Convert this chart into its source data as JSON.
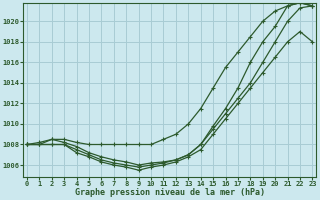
{
  "title": "Graphe pression niveau de la mer (hPa)",
  "bg_color": "#cce8ee",
  "grid_color": "#a8ccd4",
  "line_color": "#2d5a2d",
  "x_ticks": [
    0,
    1,
    2,
    3,
    4,
    5,
    6,
    7,
    8,
    9,
    10,
    11,
    12,
    13,
    14,
    15,
    16,
    17,
    18,
    19,
    20,
    21,
    22,
    23
  ],
  "y_ticks": [
    1006,
    1008,
    1010,
    1012,
    1014,
    1016,
    1018,
    1020
  ],
  "ylim": [
    1004.8,
    1021.8
  ],
  "xlim": [
    -0.3,
    23.3
  ],
  "series": [
    [
      1008.0,
      1008.0,
      1008.0,
      1008.0,
      1007.5,
      1007.0,
      1006.5,
      1006.2,
      1006.0,
      1005.8,
      1006.0,
      1006.2,
      1006.5,
      1007.0,
      1008.0,
      1009.5,
      1011.0,
      1012.5,
      1014.0,
      1016.0,
      1018.0,
      1020.0,
      1021.3,
      1021.5
    ],
    [
      1008.0,
      1008.0,
      1008.5,
      1008.2,
      1007.8,
      1007.2,
      1006.8,
      1006.5,
      1006.3,
      1006.0,
      1006.2,
      1006.3,
      1006.5,
      1007.0,
      1008.0,
      1009.8,
      1011.5,
      1013.5,
      1016.0,
      1018.0,
      1019.5,
      1021.5,
      1021.8,
      1021.5
    ],
    [
      1008.0,
      1008.0,
      1008.0,
      1008.0,
      1007.2,
      1006.8,
      1006.3,
      1006.0,
      1005.8,
      1005.5,
      1005.8,
      1006.0,
      1006.3,
      1006.8,
      1007.5,
      1009.0,
      1010.5,
      1012.0,
      1013.5,
      1015.0,
      1016.5,
      1018.0,
      1019.0,
      1018.0
    ],
    [
      1008.0,
      1008.2,
      1008.5,
      1008.5,
      1008.2,
      1008.0,
      1008.0,
      1008.0,
      1008.0,
      1008.0,
      1008.0,
      1008.5,
      1009.0,
      1010.0,
      1011.5,
      1013.5,
      1015.5,
      1017.0,
      1018.5,
      1020.0,
      1021.0,
      1021.5,
      1021.8,
      1021.5
    ]
  ]
}
